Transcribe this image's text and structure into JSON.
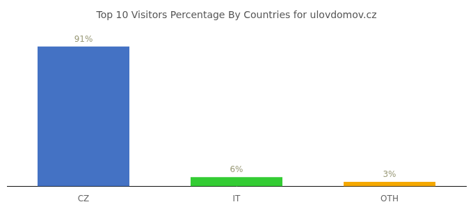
{
  "chart_data": {
    "type": "bar",
    "title": "Top 10 Visitors Percentage By Countries for ulovdomov.cz",
    "categories": [
      "CZ",
      "IT",
      "OTH"
    ],
    "values": [
      91,
      6,
      3
    ],
    "value_labels": [
      "91%",
      "6%",
      "3%"
    ],
    "data_labels": true,
    "colors": [
      "#4472c4",
      "#33cc33",
      "#f5a800"
    ],
    "ylim": [
      0,
      100
    ],
    "grid": false,
    "tick_labels": "x"
  }
}
